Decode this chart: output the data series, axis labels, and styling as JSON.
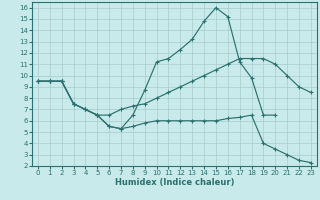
{
  "background_color": "#c8eaea",
  "line_color": "#2d7070",
  "grid_color": "#a8cccc",
  "xlabel": "Humidex (Indice chaleur)",
  "xlim": [
    -0.5,
    23.5
  ],
  "ylim": [
    2,
    16.5
  ],
  "xticks": [
    0,
    1,
    2,
    3,
    4,
    5,
    6,
    7,
    8,
    9,
    10,
    11,
    12,
    13,
    14,
    15,
    16,
    17,
    18,
    19,
    20,
    21,
    22,
    23
  ],
  "yticks": [
    2,
    3,
    4,
    5,
    6,
    7,
    8,
    9,
    10,
    11,
    12,
    13,
    14,
    15,
    16
  ],
  "peak_x": [
    0,
    1,
    2,
    3,
    4,
    5,
    6,
    7,
    8,
    9,
    10,
    11,
    12,
    13,
    14,
    15,
    16,
    17,
    18,
    19,
    20
  ],
  "peak_y": [
    9.5,
    9.5,
    9.5,
    7.5,
    7.0,
    6.5,
    5.5,
    5.3,
    6.5,
    8.7,
    11.2,
    11.5,
    12.3,
    13.2,
    14.8,
    16.0,
    15.2,
    11.2,
    9.8,
    6.5,
    6.5
  ],
  "upper_x": [
    0,
    1,
    2,
    3,
    4,
    5,
    6,
    7,
    8,
    9,
    10,
    11,
    12,
    13,
    14,
    15,
    16,
    17,
    18,
    19,
    20,
    21,
    22,
    23
  ],
  "upper_y": [
    9.5,
    9.5,
    9.5,
    7.5,
    7.0,
    6.5,
    6.5,
    7.0,
    7.3,
    7.5,
    8.0,
    8.5,
    9.0,
    9.5,
    10.0,
    10.5,
    11.0,
    11.5,
    11.5,
    11.5,
    11.0,
    10.0,
    9.0,
    8.5
  ],
  "lower_x": [
    0,
    1,
    2,
    3,
    4,
    5,
    6,
    7,
    8,
    9,
    10,
    11,
    12,
    13,
    14,
    15,
    16,
    17,
    18,
    19,
    20,
    21,
    22,
    23
  ],
  "lower_y": [
    9.5,
    9.5,
    9.5,
    7.5,
    7.0,
    6.5,
    5.5,
    5.3,
    5.5,
    5.8,
    6.0,
    6.0,
    6.0,
    6.0,
    6.0,
    6.0,
    6.2,
    6.3,
    6.5,
    4.0,
    3.5,
    3.0,
    2.5,
    2.3
  ]
}
